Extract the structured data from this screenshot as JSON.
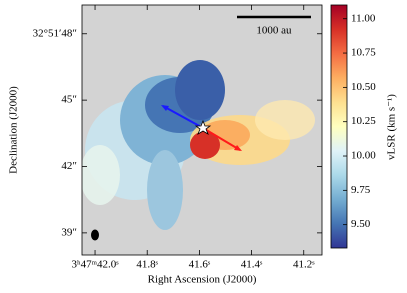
{
  "chart_data": {
    "type": "image",
    "xlabel": "Right Ascension (J2000)",
    "ylabel": "Declination (J2000)",
    "xlim": [
      42.05,
      41.13
    ],
    "ylim": [
      38.0,
      49.3
    ],
    "xticks": [
      {
        "value": 42.0,
        "label": "3ʰ47ᵐ42.0ˢ"
      },
      {
        "value": 41.8,
        "label": "41.8ˢ"
      },
      {
        "value": 41.6,
        "label": "41.6ˢ"
      },
      {
        "value": 41.4,
        "label": "41.4ˢ"
      },
      {
        "value": 41.2,
        "label": "41.2ˢ"
      }
    ],
    "yticks": [
      {
        "value": 48,
        "label": "32°51′48″"
      },
      {
        "value": 45,
        "label": "45″"
      },
      {
        "value": 42,
        "label": "42″"
      },
      {
        "value": 39,
        "label": "39″"
      }
    ],
    "scalebar_label": "1000 au",
    "colorbar_label": "vLSR (km s⁻¹)",
    "clim": [
      9.33,
      11.1
    ],
    "cticks": [
      {
        "value": 9.5,
        "label": "9.50"
      },
      {
        "value": 9.75,
        "label": "9.75"
      },
      {
        "value": 10.0,
        "label": "10.00"
      },
      {
        "value": 10.25,
        "label": "10.25"
      },
      {
        "value": 10.5,
        "label": "10.50"
      },
      {
        "value": 10.75,
        "label": "10.75"
      },
      {
        "value": 11.0,
        "label": "11.00"
      }
    ],
    "colormap": [
      "#313695",
      "#4575b4",
      "#74add1",
      "#abd9e9",
      "#e0f3f8",
      "#ffffbf",
      "#fee090",
      "#fdae61",
      "#f46d43",
      "#d73027",
      "#a50026"
    ],
    "background": "#d3d3d3"
  }
}
